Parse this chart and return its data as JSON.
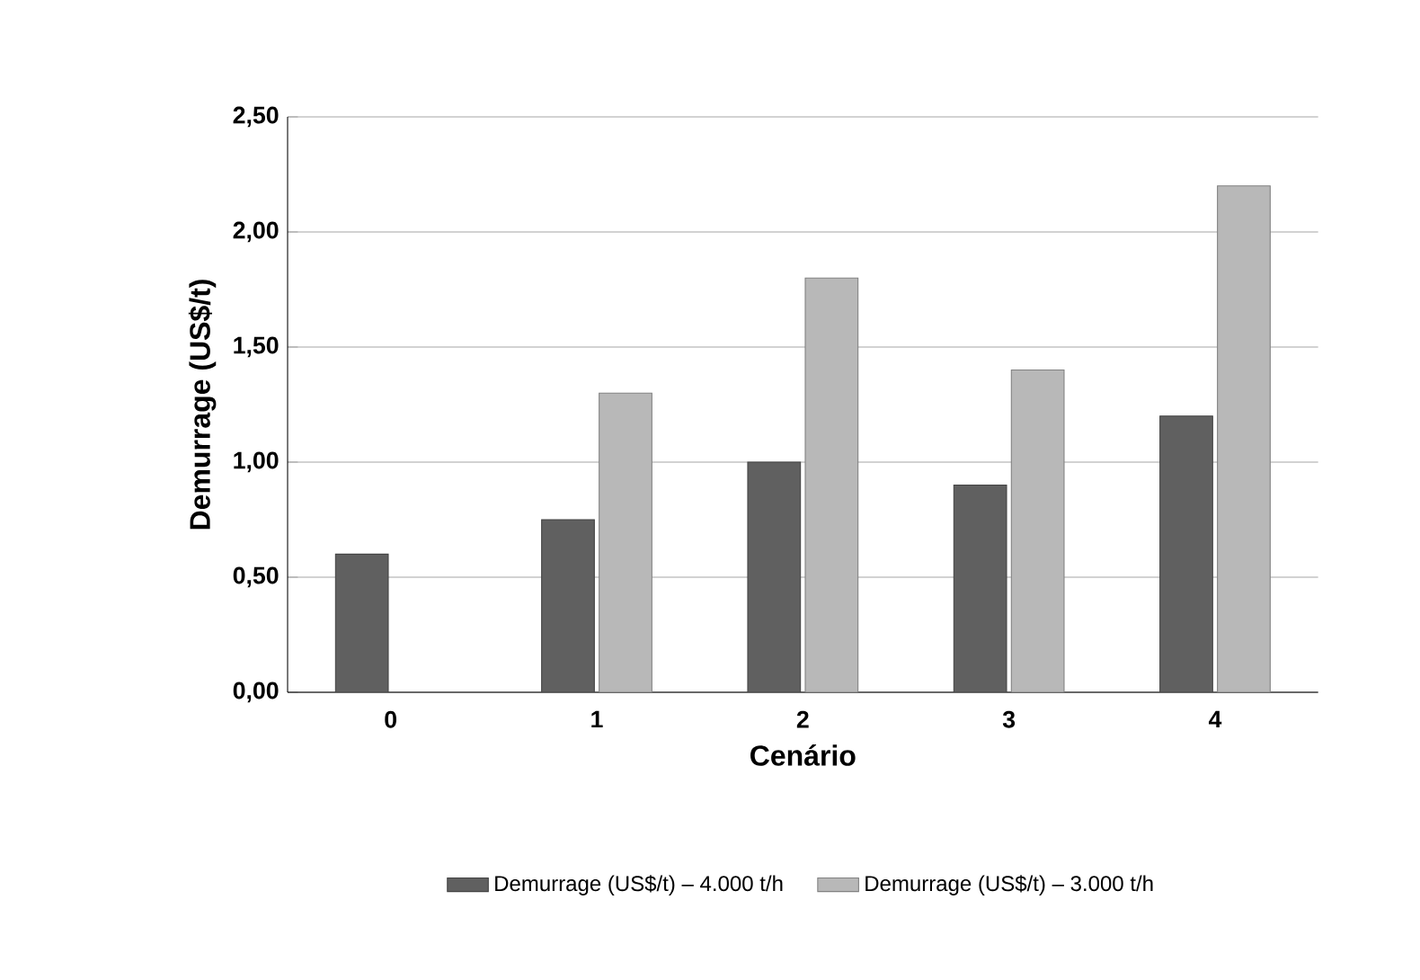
{
  "chart_data": {
    "type": "bar",
    "xlabel": "Cenário",
    "ylabel": "Demurrage (US$/t)",
    "categories": [
      "0",
      "1",
      "2",
      "3",
      "4"
    ],
    "series": [
      {
        "name": "Demurrage (US$/t) – 4.000 t/h",
        "color": "#606060",
        "values": [
          0.6,
          0.75,
          1.0,
          0.9,
          1.2
        ]
      },
      {
        "name": "Demurrage (US$/t) – 3.000 t/h",
        "color": "#b8b8b8",
        "values": [
          null,
          1.3,
          1.8,
          1.4,
          2.2
        ]
      }
    ],
    "ylim": [
      0,
      2.5
    ],
    "yticks": [
      {
        "value": 0,
        "label": "0,00"
      },
      {
        "value": 0.5,
        "label": "0,50"
      },
      {
        "value": 1,
        "label": "1,00"
      },
      {
        "value": 1.5,
        "label": "1,50"
      },
      {
        "value": 2,
        "label": "2,00"
      },
      {
        "value": 2.5,
        "label": "2,50"
      }
    ],
    "grid": "y",
    "legend": "bottom"
  }
}
